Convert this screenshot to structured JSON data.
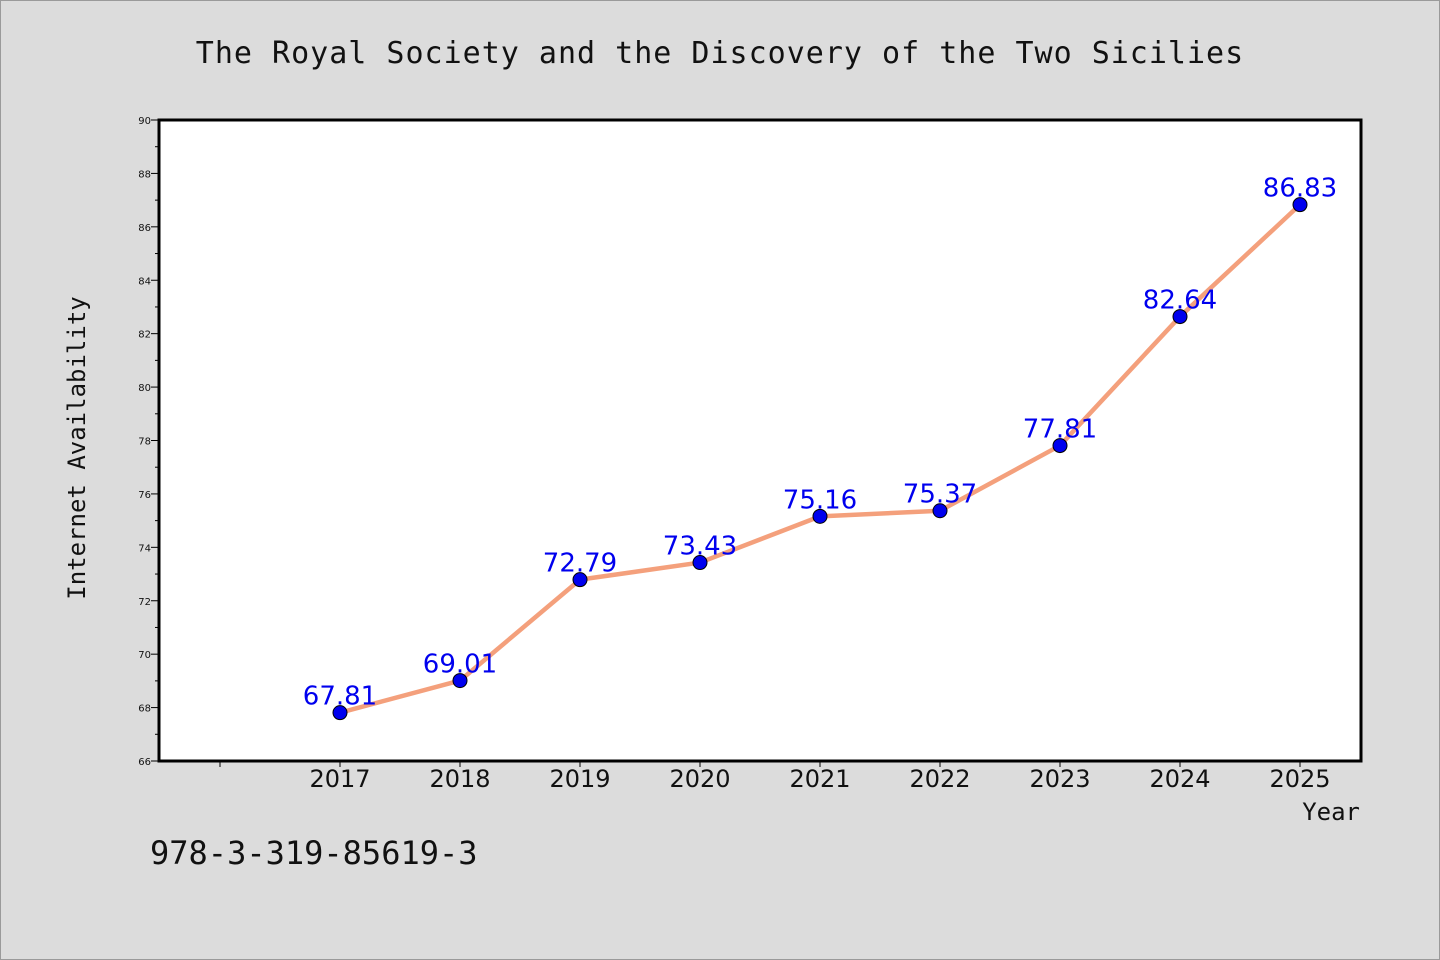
{
  "chart_data": {
    "type": "line",
    "title": "The Royal Society and the Discovery of the Two Sicilies",
    "xlabel": "Year",
    "ylabel": "Internet Availability",
    "categories": [
      "2017",
      "2018",
      "2019",
      "2020",
      "2021",
      "2022",
      "2023",
      "2024",
      "2025"
    ],
    "series": [
      {
        "values": [
          67.81,
          69.01,
          72.79,
          73.43,
          75.16,
          75.37,
          77.81,
          82.64,
          86.83
        ],
        "labels": [
          "67.81",
          "69.01",
          "72.79",
          "73.43",
          "75.16",
          "75.37",
          "77.81",
          "82.64",
          "86.83"
        ],
        "line_color": "#f4a07c",
        "marker_color": "#0000ee",
        "label_color": "#0000ee"
      }
    ],
    "ylim": [
      66,
      90
    ],
    "yticks": [
      "66",
      "68",
      "70",
      "72",
      "74",
      "76",
      "78",
      "80",
      "82",
      "84",
      "86",
      "88",
      "90"
    ],
    "grid": false,
    "legend": "none"
  },
  "footer": {
    "isbn": "978-3-319-85619-3"
  }
}
